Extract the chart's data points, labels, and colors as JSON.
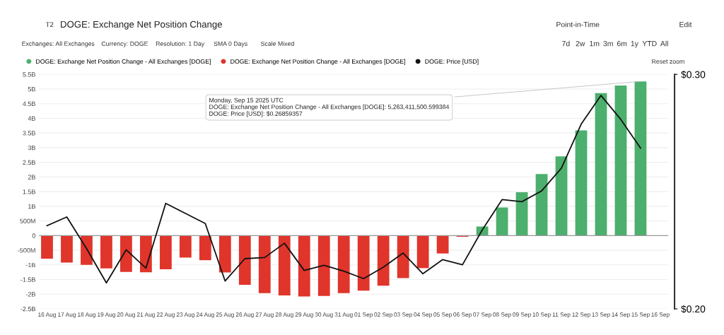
{
  "chart_data": {
    "type": "bar",
    "title": "DOGE: Exchange Net Position Change",
    "categories": [
      "16 Aug",
      "17 Aug",
      "18 Aug",
      "19 Aug",
      "20 Aug",
      "21 Aug",
      "22 Aug",
      "23 Aug",
      "24 Aug",
      "25 Aug",
      "26 Aug",
      "27 Aug",
      "28 Aug",
      "29 Aug",
      "30 Aug",
      "31 Aug",
      "01 Sep",
      "02 Sep",
      "03 Sep",
      "04 Sep",
      "05 Sep",
      "06 Sep",
      "07 Sep",
      "08 Sep",
      "09 Sep",
      "10 Sep",
      "11 Sep",
      "12 Sep",
      "13 Sep",
      "14 Sep",
      "15 Sep",
      "16 Sep"
    ],
    "series": [
      {
        "name": "DOGE: Exchange Net Position Change - All Exchanges [DOGE]",
        "color": "#4caf6d",
        "values": [
          null,
          null,
          null,
          null,
          null,
          null,
          null,
          null,
          null,
          null,
          null,
          null,
          null,
          null,
          null,
          null,
          null,
          null,
          null,
          null,
          null,
          null,
          310000000,
          960000000,
          1480000000,
          2100000000,
          2700000000,
          3590000000,
          4860000000,
          5120000000,
          5260000000,
          null
        ]
      },
      {
        "name": "DOGE: Exchange Net Position Change - All Exchanges [DOGE]",
        "color": "#e0352b",
        "values": [
          -790000000,
          -920000000,
          -1000000000,
          -1120000000,
          -1240000000,
          -1250000000,
          -1150000000,
          -750000000,
          -840000000,
          -1260000000,
          -1680000000,
          -1960000000,
          -2040000000,
          -2080000000,
          -2060000000,
          -1960000000,
          -1880000000,
          -1710000000,
          -1450000000,
          -1110000000,
          -610000000,
          -40000000,
          null,
          null,
          null,
          null,
          null,
          null,
          null,
          null,
          null,
          null
        ]
      },
      {
        "name": "DOGE: Price [USD]",
        "type": "line",
        "axis": "y2",
        "color": "#111111",
        "values": [
          0.2355,
          0.2392,
          0.2257,
          0.2111,
          0.2252,
          0.2174,
          0.245,
          0.2407,
          0.2364,
          0.2119,
          0.2214,
          0.2219,
          0.228,
          0.2164,
          0.2186,
          0.2161,
          0.2129,
          0.2178,
          0.2238,
          0.215,
          0.221,
          0.2188,
          0.2337,
          0.2466,
          0.2457,
          0.2503,
          0.26,
          0.2788,
          0.291,
          0.2808,
          0.2686,
          null
        ]
      }
    ],
    "ylim": [
      -2500000000,
      5500000000
    ],
    "yticks": [
      {
        "value": -2500000000,
        "label": "-2.5B"
      },
      {
        "value": -2000000000,
        "label": "-2B"
      },
      {
        "value": -1500000000,
        "label": "-1.5B"
      },
      {
        "value": -1000000000,
        "label": "-1B"
      },
      {
        "value": -500000000,
        "label": "-500M"
      },
      0,
      {
        "value": 500000000,
        "label": "500M"
      },
      {
        "value": 1000000000,
        "label": "1B"
      },
      {
        "value": 1500000000,
        "label": "1.5B"
      },
      {
        "value": 2000000000,
        "label": "2B"
      },
      {
        "value": 2500000000,
        "label": "2.5B"
      },
      {
        "value": 3000000000,
        "label": "3B"
      },
      {
        "value": 3500000000,
        "label": "3.5B"
      },
      {
        "value": 4000000000,
        "label": "4B"
      },
      {
        "value": 4500000000,
        "label": "4.5B"
      },
      {
        "value": 5000000000,
        "label": "5B"
      },
      {
        "value": 5500000000,
        "label": "5.5B"
      }
    ],
    "y2lim": [
      0.2,
      0.3
    ],
    "y2ticks": [
      {
        "value": 0.2,
        "label": "$0.20"
      },
      {
        "value": 0.3,
        "label": "$0.30"
      }
    ],
    "grid": "y",
    "legend": "top left",
    "marker": "none",
    "line_style": "solid",
    "annotations": [
      {
        "text": "Monday, Sep 15 2025 UTC\nDOGE: Exchange Net Position Change - All Exchanges [DOGE]: 5,263,411,500.599384\nDOGE: Price [USD]: $0.26859357",
        "x": "15 Sep",
        "y": 5260000000
      },
      "T2",
      "Exchanges: All Exchanges",
      "Currency: DOGE",
      "Resolution: 1 Day",
      "SMA 0 Days",
      "Scale Mixed",
      "Point-in-Time",
      "Edit",
      "7d",
      "2w",
      "1m",
      "3m",
      "6m",
      "1y",
      "YTD",
      "All",
      "Reset zoom"
    ]
  }
}
